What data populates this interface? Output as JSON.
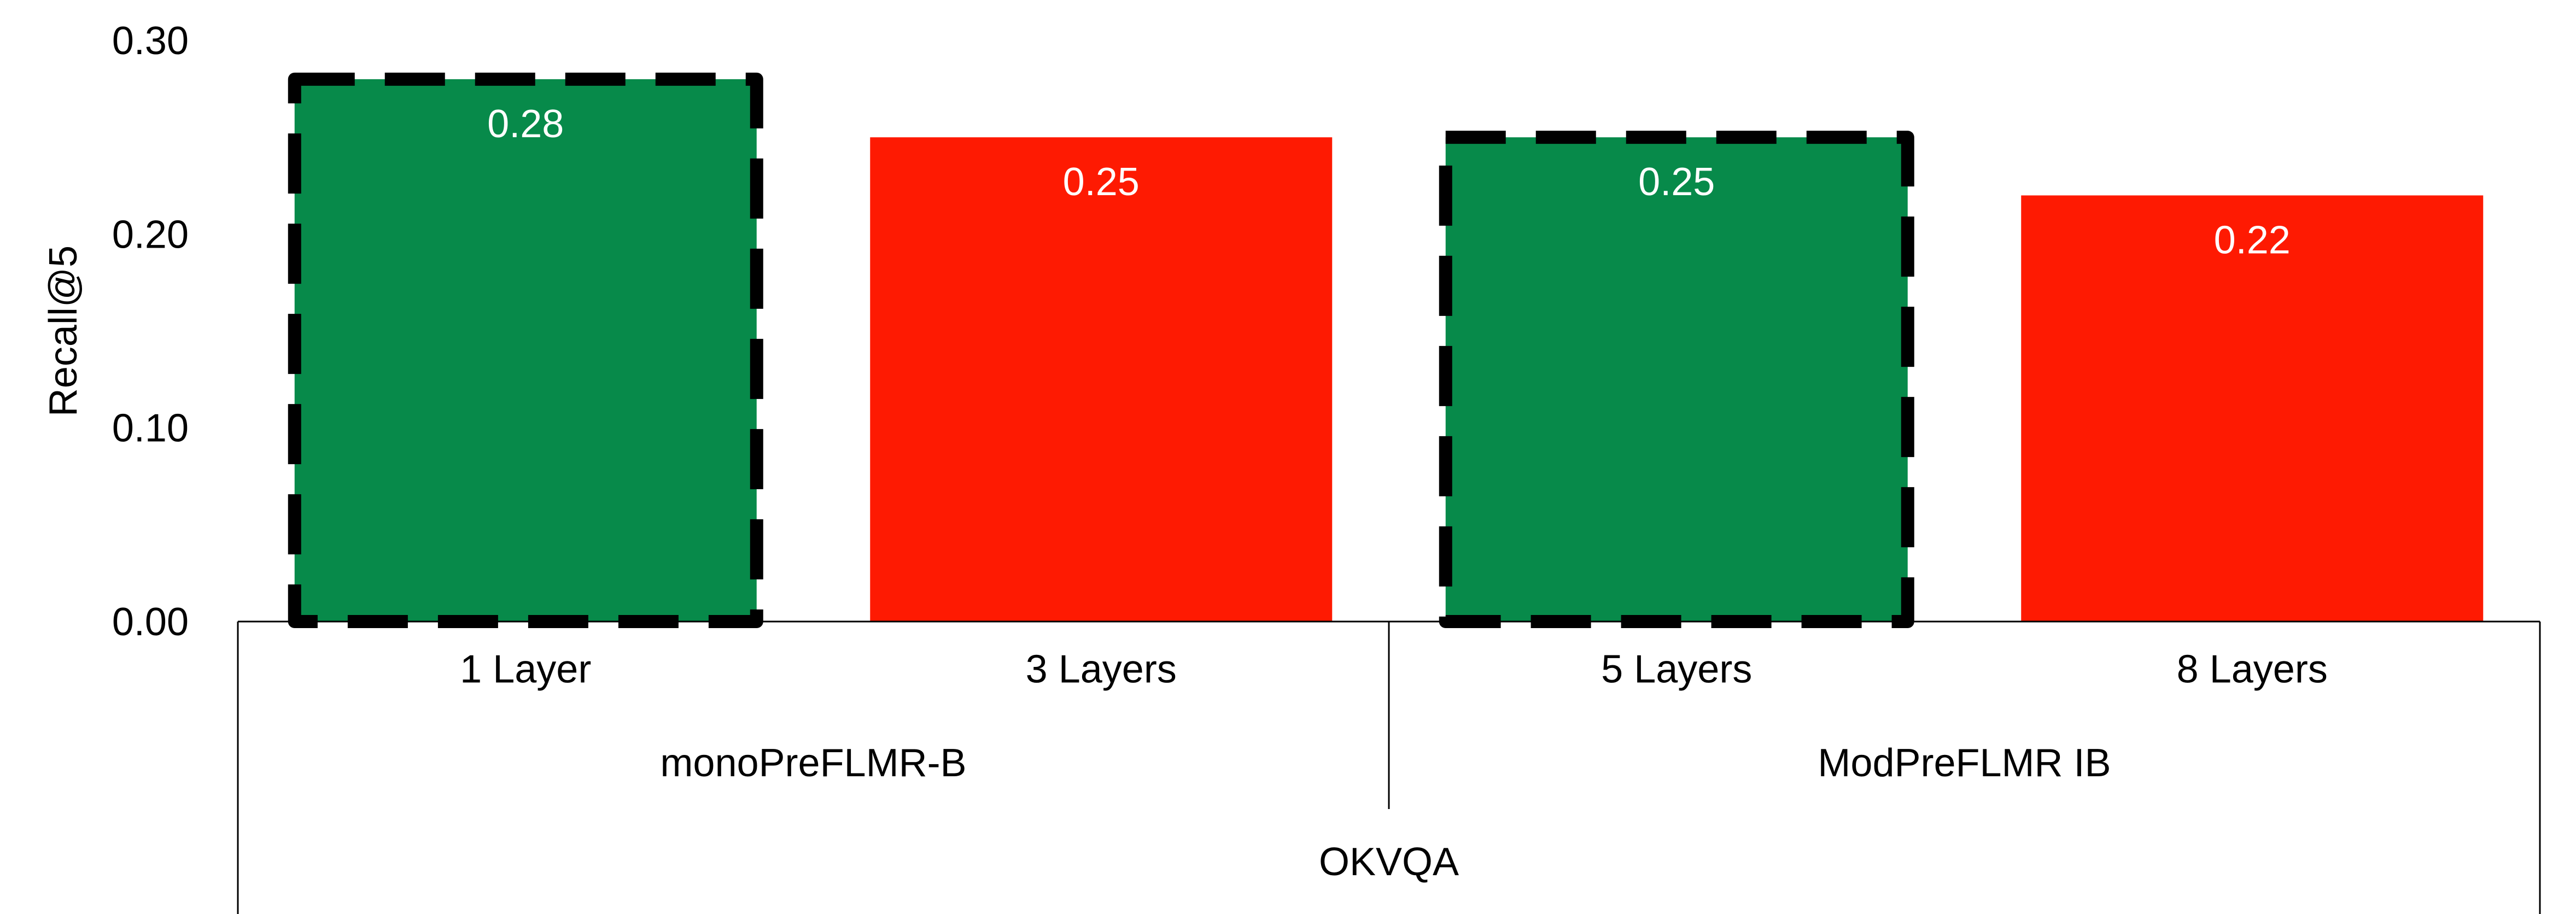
{
  "chart_data": {
    "type": "bar",
    "ylabel": "Recall@5",
    "ylim": [
      0,
      0.3
    ],
    "yticks": [
      "0.00",
      "0.10",
      "0.20",
      "0.30"
    ],
    "grid": false,
    "legend": "none",
    "categories": [
      "1 Layer",
      "3 Layers",
      "5 Layers",
      "8 Layers"
    ],
    "values": [
      0.28,
      0.25,
      0.25,
      0.22
    ],
    "data_labels": [
      "0.28",
      "0.25",
      "0.25",
      "0.22"
    ],
    "highlighted": [
      true,
      false,
      true,
      false
    ],
    "highlight_style": "dashed black outline",
    "colors": [
      "#078a4a",
      "#fe1a02",
      "#078a4a",
      "#fe1a02"
    ],
    "groups": [
      {
        "label": "monoPreFLMR-B",
        "categories": [
          "1 Layer",
          "3 Layers"
        ]
      },
      {
        "label": "ModPreFLMR IB",
        "categories": [
          "5 Layers",
          "8 Layers"
        ]
      }
    ],
    "outer_group": "OKVQA"
  }
}
